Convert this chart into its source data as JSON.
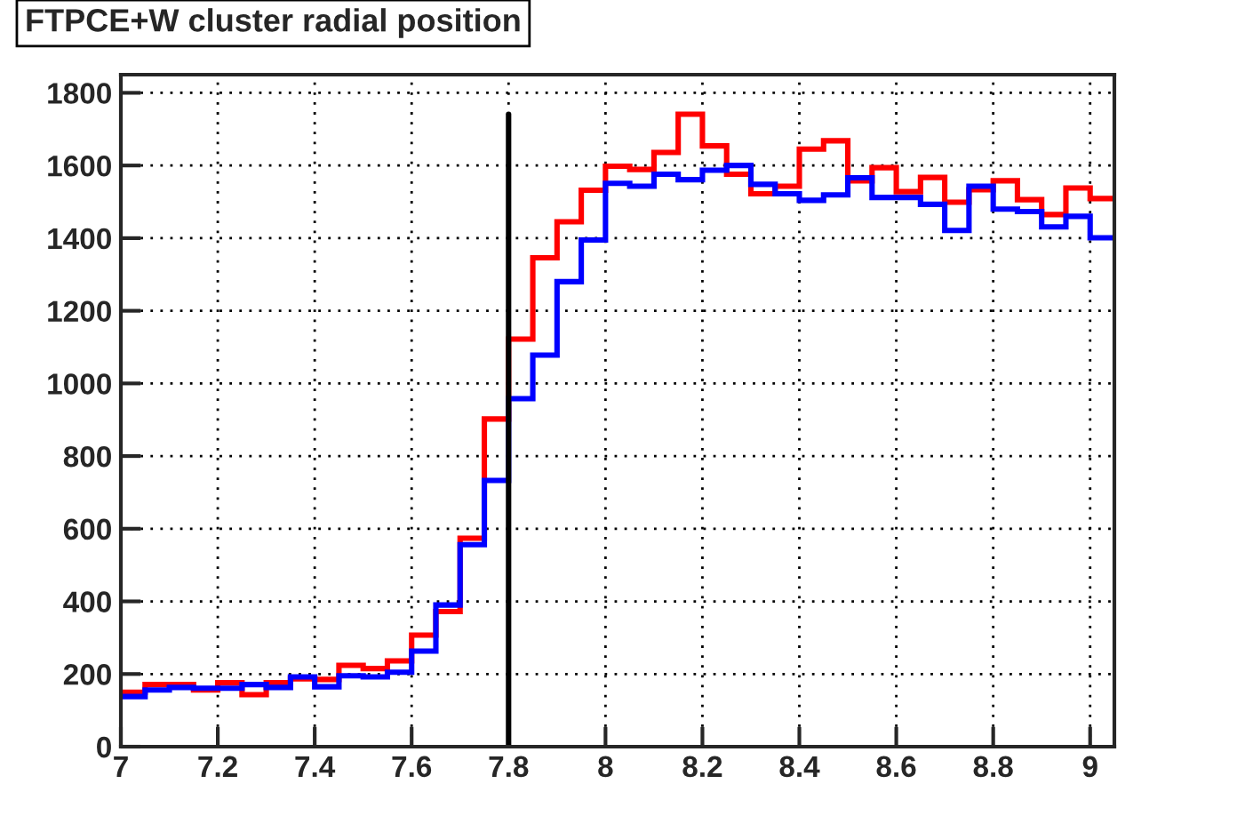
{
  "chart_data": {
    "type": "histogram",
    "title": "FTPCE+W cluster radial position",
    "bins": [
      7,
      7.05,
      7.1,
      7.15,
      7.2,
      7.25,
      7.3,
      7.35,
      7.4,
      7.45,
      7.5,
      7.55,
      7.6,
      7.65,
      7.7,
      7.75,
      7.8,
      7.85,
      7.9,
      7.95,
      8,
      8.05,
      8.1,
      8.15,
      8.2,
      8.25,
      8.3,
      8.35,
      8.4,
      8.45,
      8.5,
      8.55,
      8.6,
      8.65,
      8.7,
      8.75,
      8.8,
      8.85,
      8.9,
      8.95,
      9,
      9.05
    ],
    "series": [
      {
        "color": "#ff0000",
        "values": [
          150,
          171,
          171,
          156,
          176,
          143,
          176,
          187,
          185,
          224,
          215,
          236,
          307,
          372,
          574,
          902,
          1122,
          1346,
          1445,
          1532,
          1598,
          1589,
          1636,
          1741,
          1654,
          1576,
          1522,
          1543,
          1645,
          1668,
          1558,
          1594,
          1528,
          1567,
          1499,
          1533,
          1558,
          1506,
          1465,
          1538,
          1509
        ]
      },
      {
        "color": "#0000ff",
        "values": [
          138,
          156,
          163,
          161,
          161,
          171,
          163,
          192,
          165,
          195,
          192,
          205,
          263,
          390,
          556,
          733,
          958,
          1078,
          1280,
          1395,
          1551,
          1543,
          1576,
          1561,
          1587,
          1600,
          1548,
          1522,
          1504,
          1519,
          1566,
          1512,
          1512,
          1493,
          1421,
          1543,
          1480,
          1473,
          1431,
          1460,
          1401
        ]
      }
    ],
    "xlim": [
      7,
      9.05
    ],
    "ylim": [
      0,
      1850
    ],
    "xticks": [
      7,
      7.2,
      7.4,
      7.6,
      7.8,
      8,
      8.2,
      8.4,
      8.6,
      8.8,
      9
    ],
    "yticks": [
      0,
      200,
      400,
      600,
      800,
      1000,
      1200,
      1400,
      1600,
      1800
    ],
    "grid": true,
    "ref_lines": [
      {
        "axis": "x",
        "value": 7.8,
        "color": "#000000"
      }
    ]
  }
}
